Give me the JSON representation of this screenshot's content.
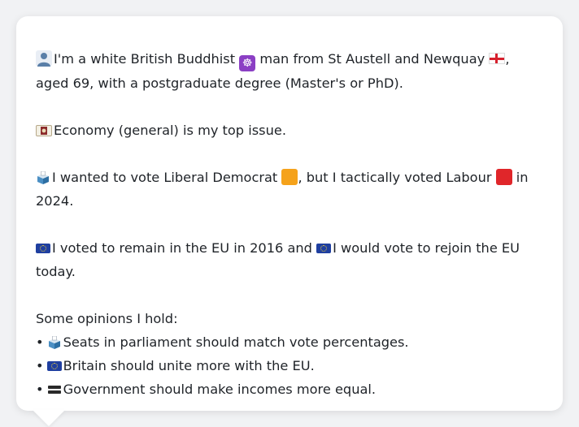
{
  "profile": {
    "identity": {
      "pre": "I'm a white British Buddhist",
      "mid": "man from St Austell and Newquay",
      "post": ",",
      "line2": "aged 69, with a postgraduate degree (Master's or PhD)."
    },
    "top_issue": "Economy (general) is my top issue.",
    "vote": {
      "pre": "I wanted to vote Liberal Democrat",
      "mid": ", but I tactically voted Labour",
      "post": "in",
      "line2": "2024."
    },
    "eu": {
      "pre": "I voted to remain in the EU in 2016 and",
      "post": "I would vote to rejoin the EU",
      "line2": "today."
    },
    "opinions_heading": "Some opinions I hold:",
    "opinions": [
      "Seats in parliament should match vote percentages.",
      "Britain should unite more with the EU.",
      "Government should make incomes more equal."
    ]
  },
  "icons": {
    "person": "person-icon",
    "dharma_wheel": "dharma-wheel-icon",
    "england_flag": "england-flag-icon",
    "money": "money-icon",
    "ballot_box": "ballot-box-icon",
    "lib_dem_square": "orange-square-icon",
    "labour_square": "red-square-icon",
    "eu_flag": "eu-flag-icon",
    "equals": "equals-icon"
  },
  "colors": {
    "lib_dem": "#f5a21b",
    "labour": "#e0262a",
    "eu_blue": "#1f3fa0",
    "buddhist_purple": "#8b3fc4"
  }
}
